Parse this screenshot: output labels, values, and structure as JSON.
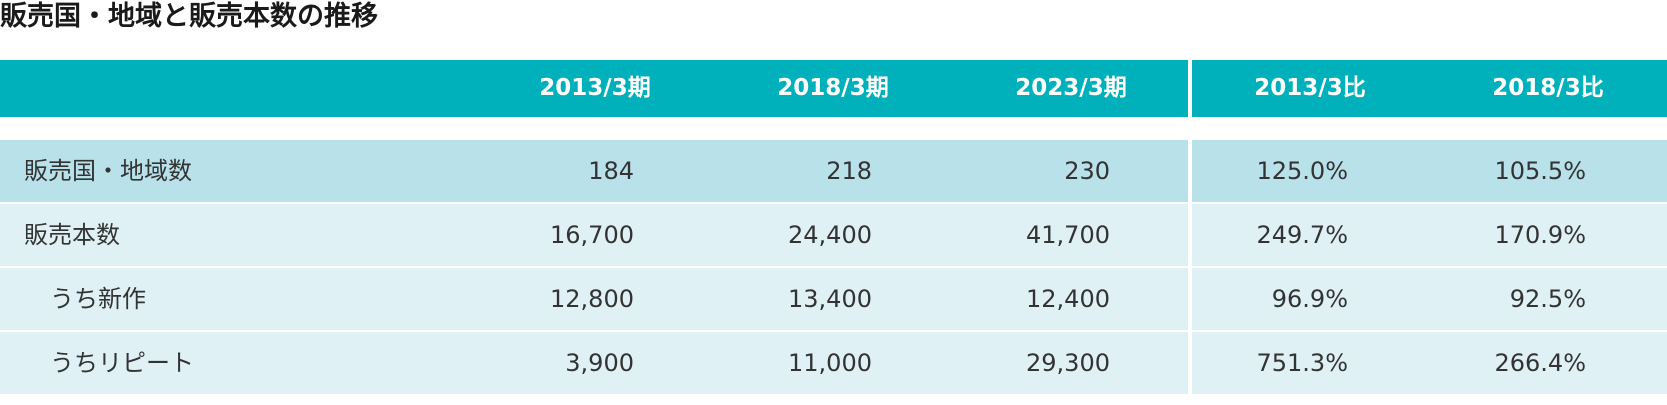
{
  "header": {
    "title": "販売国・地域と販売本数の推移"
  },
  "table": {
    "columns": [
      "2013/3期",
      "2018/3期",
      "2023/3期",
      "2013/3比",
      "2018/3比"
    ],
    "rows": [
      [
        "販売国・地域数",
        "184",
        "218",
        "230",
        "125.0%",
        "105.5%"
      ],
      [
        "販売本数",
        "16,700",
        "24,400",
        "41,700",
        "249.7%",
        "170.9%"
      ],
      [
        "うち新作",
        "12,800",
        "13,400",
        "12,400",
        "96.9%",
        "92.5%"
      ],
      [
        "うちリピート",
        "3,900",
        "11,000",
        "29,300",
        "751.3%",
        "266.4%"
      ]
    ]
  }
}
